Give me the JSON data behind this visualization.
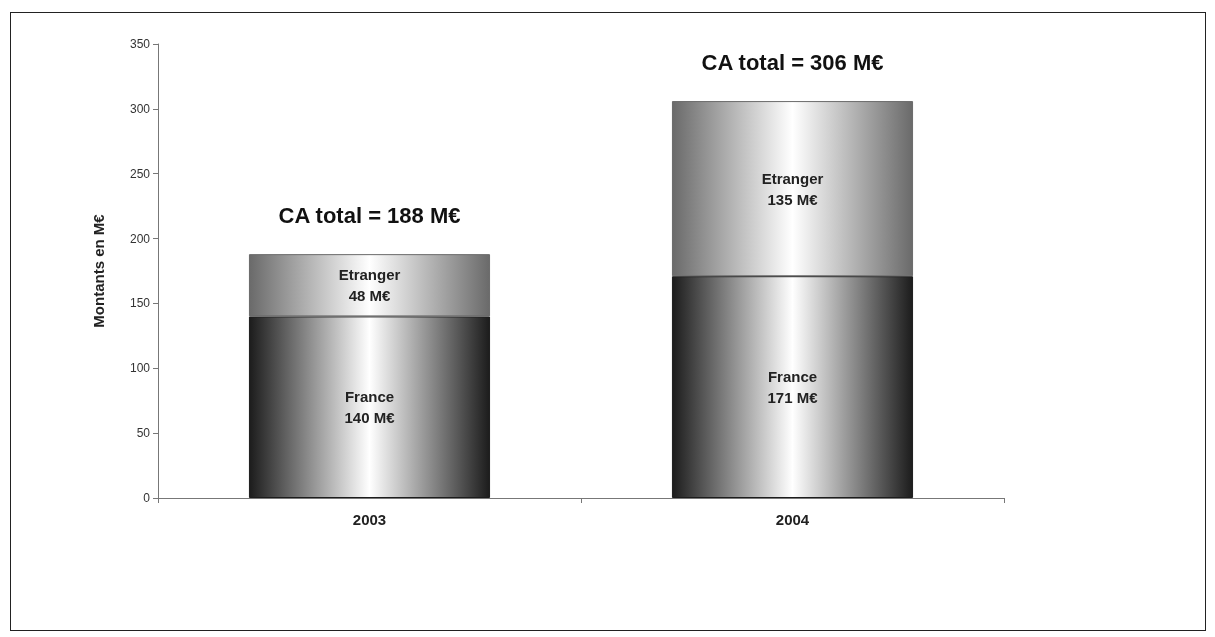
{
  "chart_data": {
    "type": "bar",
    "stacked": true,
    "ylabel": "Montants en M€",
    "categories": [
      "2003",
      "2004"
    ],
    "series": [
      {
        "name": "France",
        "color": "#1c1c1c",
        "values": [
          140,
          171
        ],
        "value_labels": [
          "140 M€",
          "171 M€"
        ]
      },
      {
        "name": "Etranger",
        "color": "#6a6a6a",
        "values": [
          48,
          135
        ],
        "value_labels": [
          "48 M€",
          "135 M€"
        ]
      }
    ],
    "totals": [
      "CA total = 188 M€",
      "CA total = 306 M€"
    ],
    "ylim": [
      0,
      350
    ],
    "yticks": [
      0,
      50,
      100,
      150,
      200,
      250,
      300,
      350
    ],
    "grid": false,
    "legend": false
  }
}
